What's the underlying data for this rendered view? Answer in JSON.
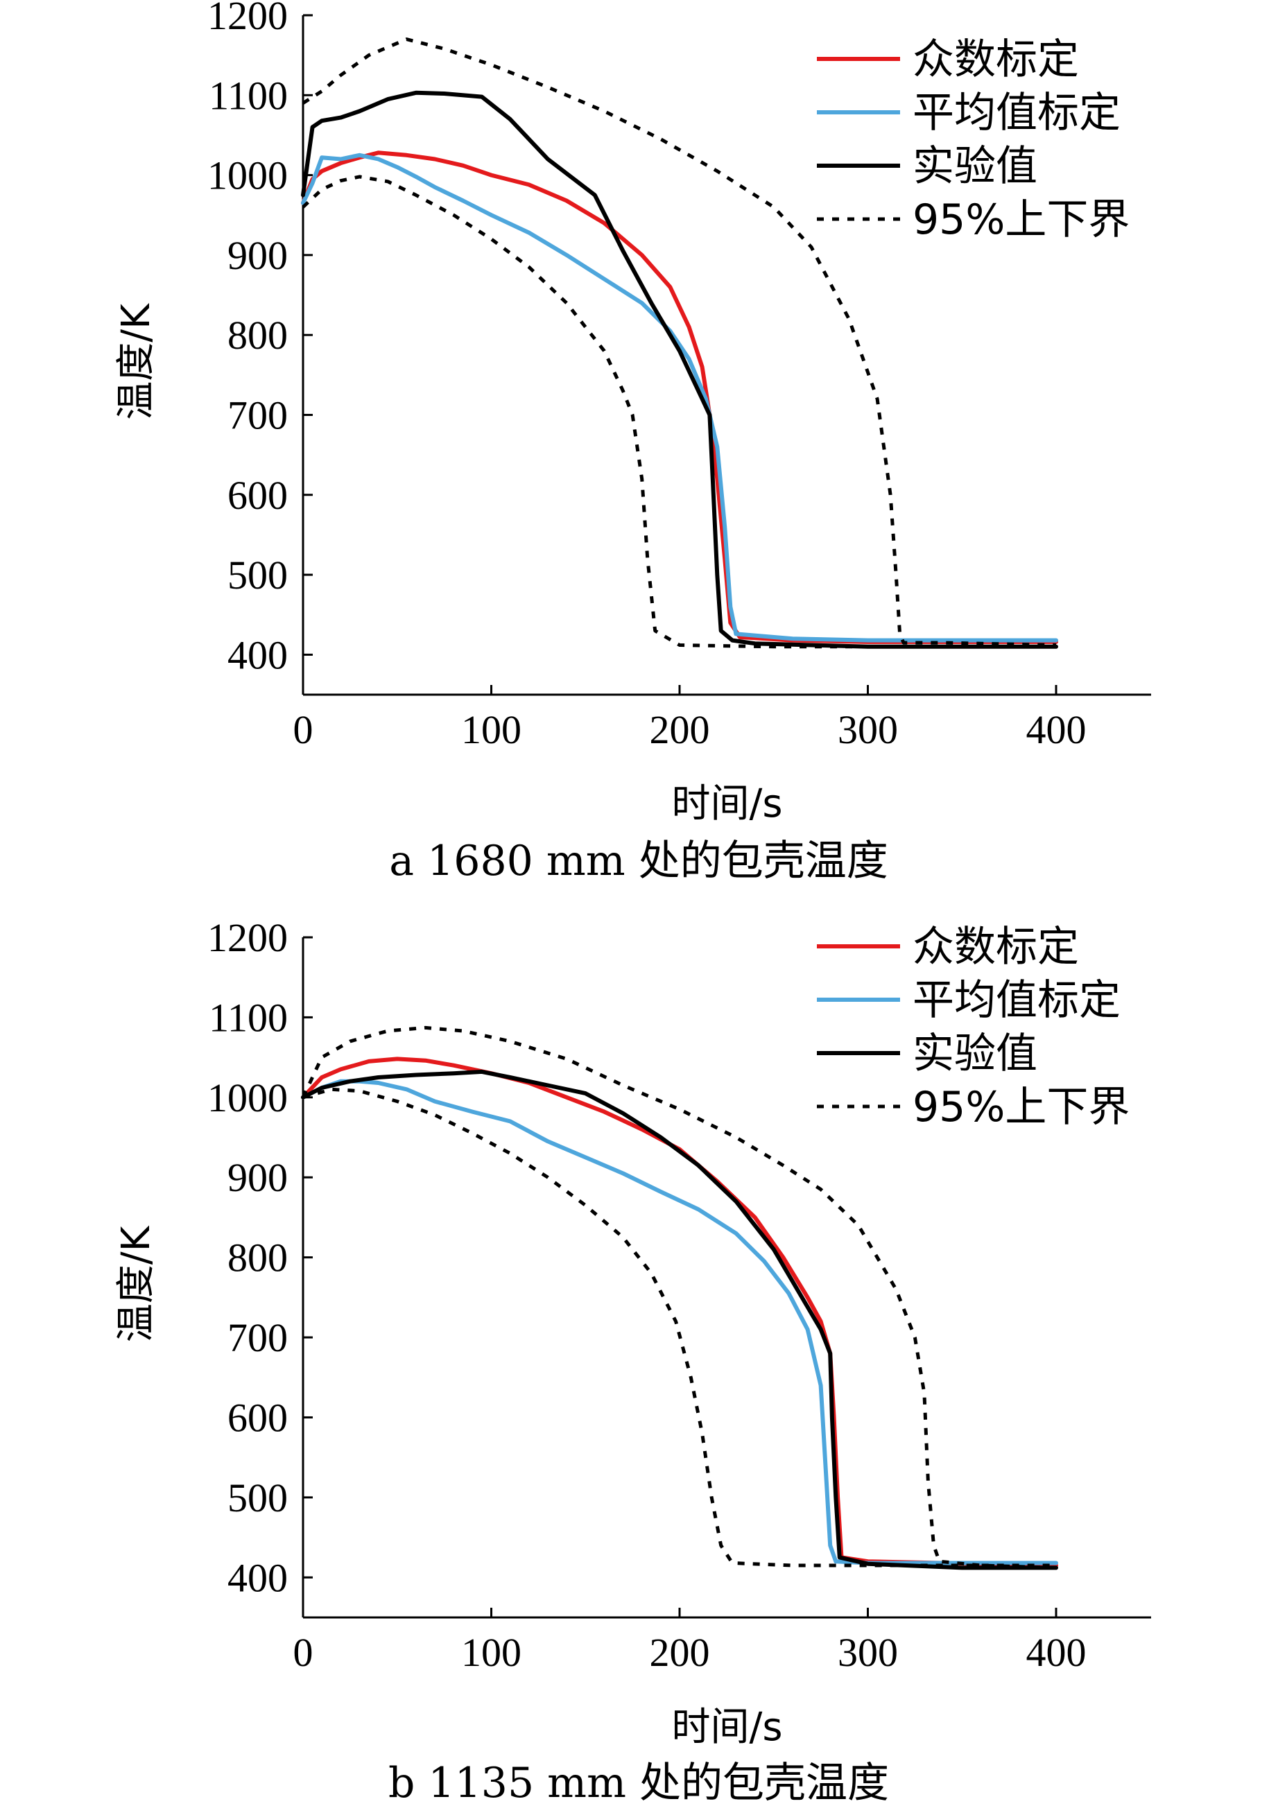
{
  "chart_data": [
    {
      "type": "line",
      "caption": "a  1680 mm 处的包壳温度",
      "xlabel": "时间/s",
      "ylabel": "温度/K",
      "xlim": [
        0,
        450
      ],
      "ylim": [
        350,
        1200
      ],
      "xticks": [
        0,
        100,
        200,
        300,
        400
      ],
      "yticks": [
        400,
        500,
        600,
        700,
        800,
        900,
        1000,
        1100,
        1200
      ],
      "legend_position": "top-right",
      "series": [
        {
          "name": "众数标定",
          "color": "#e41a1c",
          "style": "solid",
          "points": [
            [
              0,
              965
            ],
            [
              5,
              995
            ],
            [
              10,
              1005
            ],
            [
              20,
              1015
            ],
            [
              30,
              1022
            ],
            [
              40,
              1028
            ],
            [
              55,
              1025
            ],
            [
              70,
              1020
            ],
            [
              85,
              1012
            ],
            [
              100,
              1000
            ],
            [
              120,
              988
            ],
            [
              140,
              968
            ],
            [
              160,
              940
            ],
            [
              180,
              900
            ],
            [
              195,
              860
            ],
            [
              205,
              810
            ],
            [
              212,
              760
            ],
            [
              216,
              700
            ],
            [
              220,
              620
            ],
            [
              224,
              520
            ],
            [
              227,
              440
            ],
            [
              232,
              422
            ],
            [
              260,
              418
            ],
            [
              300,
              416
            ],
            [
              400,
              416
            ]
          ]
        },
        {
          "name": "平均值标定",
          "color": "#4ea6dc",
          "style": "solid",
          "points": [
            [
              0,
              965
            ],
            [
              5,
              990
            ],
            [
              10,
              1022
            ],
            [
              20,
              1020
            ],
            [
              30,
              1025
            ],
            [
              40,
              1020
            ],
            [
              50,
              1010
            ],
            [
              60,
              998
            ],
            [
              70,
              985
            ],
            [
              85,
              968
            ],
            [
              100,
              950
            ],
            [
              120,
              928
            ],
            [
              140,
              900
            ],
            [
              160,
              870
            ],
            [
              180,
              840
            ],
            [
              195,
              805
            ],
            [
              205,
              770
            ],
            [
              214,
              720
            ],
            [
              220,
              660
            ],
            [
              224,
              560
            ],
            [
              227,
              460
            ],
            [
              230,
              426
            ],
            [
              260,
              420
            ],
            [
              300,
              418
            ],
            [
              400,
              418
            ]
          ]
        },
        {
          "name": "实验值",
          "color": "#000000",
          "style": "solid",
          "points": [
            [
              0,
              975
            ],
            [
              5,
              1060
            ],
            [
              10,
              1068
            ],
            [
              20,
              1072
            ],
            [
              30,
              1080
            ],
            [
              45,
              1095
            ],
            [
              60,
              1103
            ],
            [
              75,
              1102
            ],
            [
              95,
              1098
            ],
            [
              110,
              1070
            ],
            [
              130,
              1020
            ],
            [
              155,
              975
            ],
            [
              170,
              905
            ],
            [
              185,
              840
            ],
            [
              200,
              780
            ],
            [
              212,
              720
            ],
            [
              216,
              700
            ],
            [
              218,
              600
            ],
            [
              220,
              500
            ],
            [
              222,
              430
            ],
            [
              228,
              418
            ],
            [
              240,
              414
            ],
            [
              300,
              410
            ],
            [
              400,
              410
            ]
          ]
        },
        {
          "name": "95%上下界",
          "color": "#000000",
          "style": "dashed",
          "points": [
            [
              0,
              1090
            ],
            [
              10,
              1105
            ],
            [
              20,
              1125
            ],
            [
              35,
              1150
            ],
            [
              55,
              1170
            ],
            [
              75,
              1158
            ],
            [
              100,
              1138
            ],
            [
              130,
              1110
            ],
            [
              160,
              1080
            ],
            [
              190,
              1045
            ],
            [
              220,
              1005
            ],
            [
              250,
              960
            ],
            [
              270,
              910
            ],
            [
              290,
              820
            ],
            [
              305,
              720
            ],
            [
              312,
              600
            ],
            [
              315,
              500
            ],
            [
              317,
              425
            ],
            [
              319,
              415
            ],
            [
              340,
              415
            ],
            [
              400,
              412
            ]
          ]
        },
        {
          "name": "",
          "color": "#000000",
          "style": "dashed",
          "points": [
            [
              0,
              960
            ],
            [
              10,
              982
            ],
            [
              20,
              993
            ],
            [
              30,
              998
            ],
            [
              45,
              992
            ],
            [
              60,
              975
            ],
            [
              80,
              950
            ],
            [
              100,
              920
            ],
            [
              120,
              885
            ],
            [
              140,
              840
            ],
            [
              160,
              780
            ],
            [
              170,
              730
            ],
            [
              175,
              700
            ],
            [
              180,
              620
            ],
            [
              183,
              520
            ],
            [
              187,
              430
            ],
            [
              200,
              412
            ],
            [
              250,
              410
            ],
            [
              320,
              410
            ],
            [
              400,
              410
            ]
          ]
        }
      ]
    },
    {
      "type": "line",
      "caption": "b 1135 mm 处的包壳温度",
      "xlabel": "时间/s",
      "ylabel": "温度/K",
      "xlim": [
        0,
        450
      ],
      "ylim": [
        350,
        1200
      ],
      "xticks": [
        0,
        100,
        200,
        300,
        400
      ],
      "yticks": [
        400,
        500,
        600,
        700,
        800,
        900,
        1000,
        1100,
        1200
      ],
      "legend_position": "top-right",
      "series": [
        {
          "name": "众数标定",
          "color": "#e41a1c",
          "style": "solid",
          "points": [
            [
              0,
              1000
            ],
            [
              10,
              1025
            ],
            [
              20,
              1035
            ],
            [
              35,
              1045
            ],
            [
              50,
              1048
            ],
            [
              65,
              1046
            ],
            [
              80,
              1040
            ],
            [
              100,
              1030
            ],
            [
              120,
              1018
            ],
            [
              140,
              1000
            ],
            [
              160,
              982
            ],
            [
              180,
              960
            ],
            [
              200,
              935
            ],
            [
              220,
              895
            ],
            [
              240,
              850
            ],
            [
              255,
              800
            ],
            [
              268,
              750
            ],
            [
              275,
              720
            ],
            [
              280,
              680
            ],
            [
              282,
              600
            ],
            [
              284,
              500
            ],
            [
              286,
              425
            ],
            [
              300,
              420
            ],
            [
              400,
              415
            ]
          ]
        },
        {
          "name": "平均值标定",
          "color": "#4ea6dc",
          "style": "solid",
          "points": [
            [
              0,
              1000
            ],
            [
              10,
              1012
            ],
            [
              20,
              1020
            ],
            [
              30,
              1020
            ],
            [
              40,
              1018
            ],
            [
              55,
              1010
            ],
            [
              70,
              995
            ],
            [
              90,
              982
            ],
            [
              110,
              970
            ],
            [
              130,
              945
            ],
            [
              150,
              925
            ],
            [
              170,
              905
            ],
            [
              190,
              882
            ],
            [
              210,
              860
            ],
            [
              230,
              830
            ],
            [
              245,
              795
            ],
            [
              258,
              755
            ],
            [
              268,
              710
            ],
            [
              275,
              640
            ],
            [
              278,
              520
            ],
            [
              280,
              440
            ],
            [
              283,
              420
            ],
            [
              300,
              418
            ],
            [
              400,
              418
            ]
          ]
        },
        {
          "name": "实验值",
          "color": "#000000",
          "style": "solid",
          "points": [
            [
              0,
              1000
            ],
            [
              10,
              1012
            ],
            [
              25,
              1020
            ],
            [
              40,
              1025
            ],
            [
              60,
              1028
            ],
            [
              80,
              1030
            ],
            [
              95,
              1032
            ],
            [
              110,
              1025
            ],
            [
              130,
              1015
            ],
            [
              150,
              1005
            ],
            [
              170,
              980
            ],
            [
              190,
              950
            ],
            [
              210,
              915
            ],
            [
              230,
              870
            ],
            [
              250,
              810
            ],
            [
              265,
              750
            ],
            [
              275,
              710
            ],
            [
              280,
              680
            ],
            [
              281,
              600
            ],
            [
              283,
              500
            ],
            [
              285,
              425
            ],
            [
              300,
              417
            ],
            [
              350,
              412
            ],
            [
              400,
              412
            ]
          ]
        },
        {
          "name": "95%上下界",
          "color": "#000000",
          "style": "dashed",
          "points": [
            [
              0,
              1000
            ],
            [
              10,
              1050
            ],
            [
              25,
              1070
            ],
            [
              45,
              1083
            ],
            [
              65,
              1087
            ],
            [
              85,
              1083
            ],
            [
              110,
              1070
            ],
            [
              140,
              1048
            ],
            [
              170,
              1015
            ],
            [
              200,
              985
            ],
            [
              230,
              950
            ],
            [
              255,
              915
            ],
            [
              275,
              885
            ],
            [
              295,
              840
            ],
            [
              315,
              760
            ],
            [
              325,
              700
            ],
            [
              330,
              630
            ],
            [
              332,
              520
            ],
            [
              335,
              440
            ],
            [
              338,
              420
            ],
            [
              360,
              415
            ],
            [
              400,
              412
            ]
          ]
        },
        {
          "name": "",
          "color": "#000000",
          "style": "dashed",
          "points": [
            [
              0,
              1000
            ],
            [
              15,
              1010
            ],
            [
              30,
              1008
            ],
            [
              50,
              995
            ],
            [
              70,
              978
            ],
            [
              90,
              955
            ],
            [
              110,
              930
            ],
            [
              130,
              900
            ],
            [
              150,
              865
            ],
            [
              170,
              825
            ],
            [
              185,
              780
            ],
            [
              198,
              720
            ],
            [
              206,
              650
            ],
            [
              212,
              580
            ],
            [
              217,
              500
            ],
            [
              222,
              440
            ],
            [
              228,
              418
            ],
            [
              260,
              415
            ],
            [
              300,
              415
            ],
            [
              400,
              415
            ]
          ]
        }
      ]
    }
  ]
}
